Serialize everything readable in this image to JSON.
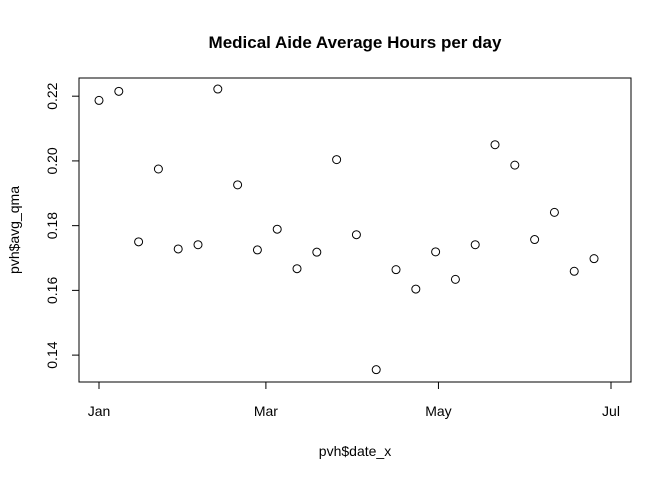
{
  "chart_data": {
    "type": "scatter",
    "title": "Medical Aide Average Hours per day",
    "xlabel": "pvh$date_x",
    "ylabel": "pvh$avg_qma",
    "xlim": [
      "2019-01-01",
      "2019-07-01"
    ],
    "ylim": [
      0.132,
      0.225
    ],
    "x_ticks": [
      {
        "value": "2019-01-01",
        "label": "Jan"
      },
      {
        "value": "2019-03-01",
        "label": "Mar"
      },
      {
        "value": "2019-05-01",
        "label": "May"
      },
      {
        "value": "2019-07-01",
        "label": "Jul"
      }
    ],
    "y_ticks": [
      {
        "value": 0.14,
        "label": "0.14"
      },
      {
        "value": 0.16,
        "label": "0.16"
      },
      {
        "value": 0.18,
        "label": "0.18"
      },
      {
        "value": 0.2,
        "label": "0.20"
      },
      {
        "value": 0.22,
        "label": "0.22"
      }
    ],
    "grid": false,
    "marker": "open-circle",
    "series": [
      {
        "points": [
          {
            "x": "2019-01-01",
            "y": 0.2187
          },
          {
            "x": "2019-01-08",
            "y": 0.2215
          },
          {
            "x": "2019-01-15",
            "y": 0.175
          },
          {
            "x": "2019-01-22",
            "y": 0.1975
          },
          {
            "x": "2019-01-29",
            "y": 0.1728
          },
          {
            "x": "2019-02-05",
            "y": 0.1741
          },
          {
            "x": "2019-02-12",
            "y": 0.2222
          },
          {
            "x": "2019-02-19",
            "y": 0.1926
          },
          {
            "x": "2019-02-26",
            "y": 0.1725
          },
          {
            "x": "2019-03-05",
            "y": 0.1789
          },
          {
            "x": "2019-03-12",
            "y": 0.1667
          },
          {
            "x": "2019-03-19",
            "y": 0.1718
          },
          {
            "x": "2019-03-26",
            "y": 0.2004
          },
          {
            "x": "2019-04-02",
            "y": 0.1772
          },
          {
            "x": "2019-04-09",
            "y": 0.1355
          },
          {
            "x": "2019-04-16",
            "y": 0.1664
          },
          {
            "x": "2019-04-23",
            "y": 0.1604
          },
          {
            "x": "2019-04-30",
            "y": 0.1719
          },
          {
            "x": "2019-05-07",
            "y": 0.1634
          },
          {
            "x": "2019-05-14",
            "y": 0.1741
          },
          {
            "x": "2019-05-21",
            "y": 0.205
          },
          {
            "x": "2019-05-28",
            "y": 0.1987
          },
          {
            "x": "2019-06-04",
            "y": 0.1757
          },
          {
            "x": "2019-06-11",
            "y": 0.1841
          },
          {
            "x": "2019-06-18",
            "y": 0.1659
          },
          {
            "x": "2019-06-25",
            "y": 0.1698
          }
        ]
      }
    ]
  }
}
